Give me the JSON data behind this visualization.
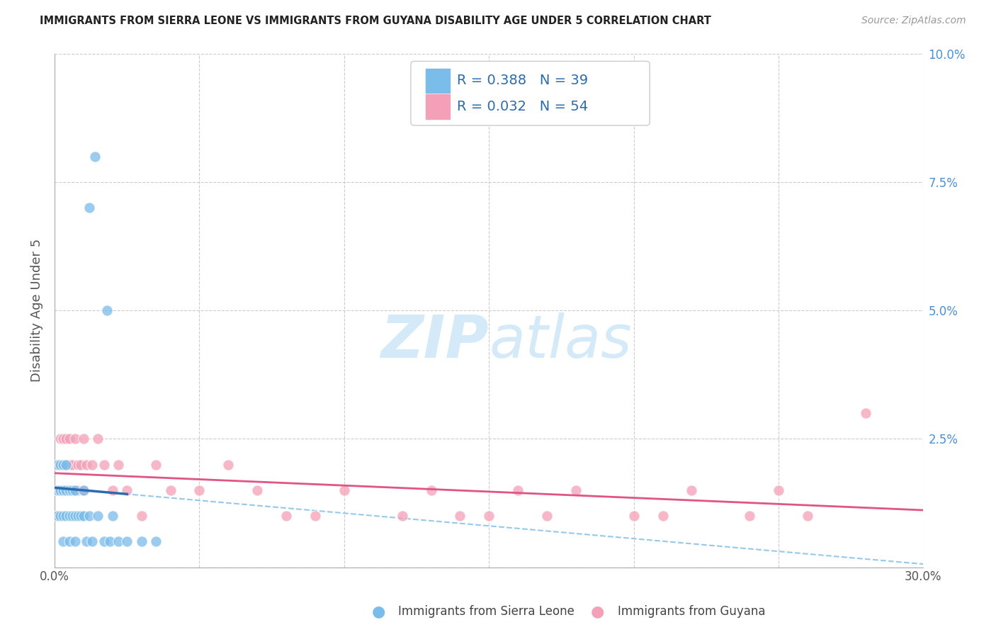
{
  "title": "IMMIGRANTS FROM SIERRA LEONE VS IMMIGRANTS FROM GUYANA DISABILITY AGE UNDER 5 CORRELATION CHART",
  "source": "Source: ZipAtlas.com",
  "ylabel": "Disability Age Under 5",
  "xlim": [
    0.0,
    0.3
  ],
  "ylim": [
    0.0,
    0.1
  ],
  "sierra_leone_color": "#7abcea",
  "guyana_color": "#f4a0b8",
  "sierra_leone_line_color": "#2b6cb0",
  "guyana_line_color": "#e05585",
  "sierra_leone_R": 0.388,
  "sierra_leone_N": 39,
  "guyana_R": 0.032,
  "guyana_N": 54,
  "background_color": "#ffffff",
  "sierra_leone_x": [
    0.001,
    0.001,
    0.001,
    0.002,
    0.002,
    0.002,
    0.003,
    0.003,
    0.003,
    0.003,
    0.004,
    0.004,
    0.004,
    0.005,
    0.005,
    0.005,
    0.006,
    0.006,
    0.007,
    0.007,
    0.007,
    0.008,
    0.009,
    0.01,
    0.01,
    0.011,
    0.012,
    0.013,
    0.015,
    0.017,
    0.019,
    0.02,
    0.022,
    0.025,
    0.03,
    0.035,
    0.012,
    0.014,
    0.018
  ],
  "sierra_leone_y": [
    0.02,
    0.015,
    0.01,
    0.02,
    0.015,
    0.01,
    0.02,
    0.015,
    0.01,
    0.005,
    0.02,
    0.015,
    0.01,
    0.015,
    0.01,
    0.005,
    0.015,
    0.01,
    0.015,
    0.01,
    0.005,
    0.01,
    0.01,
    0.015,
    0.01,
    0.005,
    0.01,
    0.005,
    0.01,
    0.005,
    0.005,
    0.01,
    0.005,
    0.005,
    0.005,
    0.005,
    0.07,
    0.08,
    0.05
  ],
  "guyana_x": [
    0.001,
    0.001,
    0.001,
    0.002,
    0.002,
    0.002,
    0.003,
    0.003,
    0.003,
    0.004,
    0.004,
    0.004,
    0.005,
    0.005,
    0.005,
    0.006,
    0.006,
    0.007,
    0.007,
    0.008,
    0.008,
    0.009,
    0.01,
    0.01,
    0.011,
    0.013,
    0.015,
    0.017,
    0.02,
    0.022,
    0.025,
    0.03,
    0.035,
    0.04,
    0.05,
    0.06,
    0.07,
    0.08,
    0.09,
    0.1,
    0.12,
    0.13,
    0.14,
    0.15,
    0.16,
    0.17,
    0.18,
    0.2,
    0.21,
    0.22,
    0.24,
    0.25,
    0.26,
    0.28
  ],
  "guyana_y": [
    0.02,
    0.015,
    0.01,
    0.025,
    0.02,
    0.015,
    0.025,
    0.02,
    0.015,
    0.025,
    0.02,
    0.015,
    0.025,
    0.02,
    0.015,
    0.02,
    0.015,
    0.025,
    0.015,
    0.02,
    0.015,
    0.02,
    0.025,
    0.015,
    0.02,
    0.02,
    0.025,
    0.02,
    0.015,
    0.02,
    0.015,
    0.01,
    0.02,
    0.015,
    0.015,
    0.02,
    0.015,
    0.01,
    0.01,
    0.015,
    0.01,
    0.015,
    0.01,
    0.01,
    0.015,
    0.01,
    0.015,
    0.01,
    0.01,
    0.015,
    0.01,
    0.015,
    0.01,
    0.03
  ]
}
